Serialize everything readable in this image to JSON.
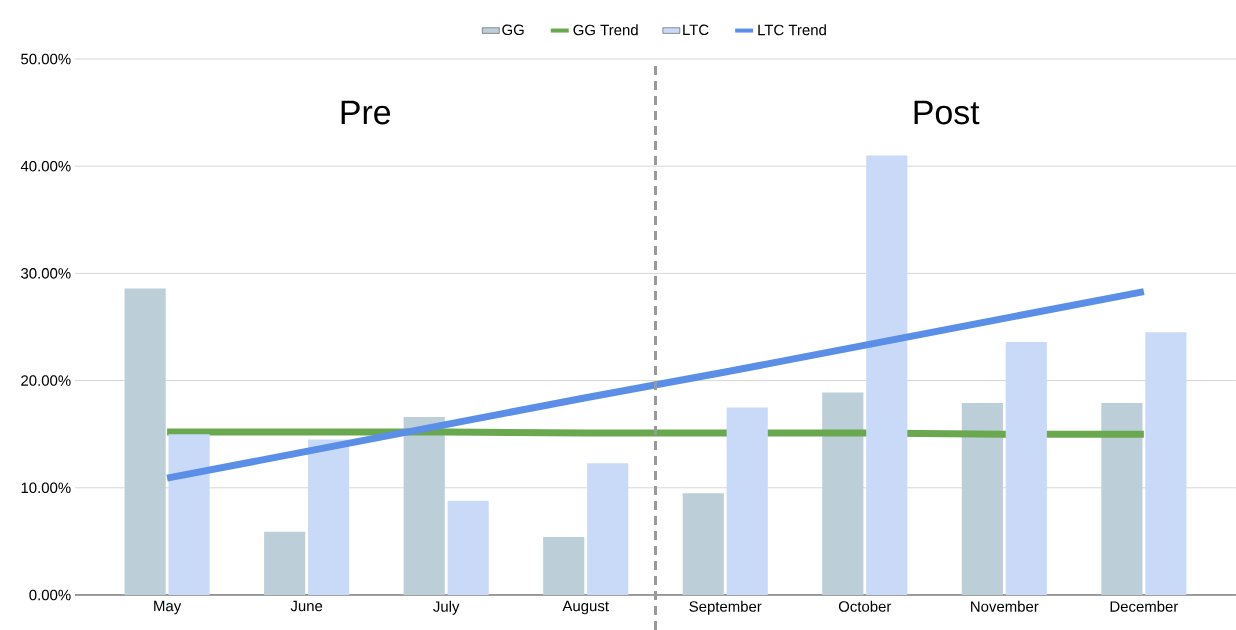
{
  "chart_data": {
    "type": "bar",
    "categories": [
      "May",
      "June",
      "July",
      "August",
      "September",
      "October",
      "November",
      "December"
    ],
    "series": [
      {
        "name": "GG",
        "color": "#bccfd8",
        "values": [
          28.6,
          5.9,
          16.6,
          5.4,
          9.5,
          18.9,
          17.9,
          17.9
        ]
      },
      {
        "name": "GG Trend",
        "type": "line",
        "color": "#6aa84f",
        "values": [
          15.2,
          15.2,
          15.2,
          15.1,
          15.1,
          15.1,
          15.0,
          15.0
        ]
      },
      {
        "name": "LTC",
        "color": "#c9daf8",
        "values": [
          15.0,
          14.5,
          8.8,
          12.3,
          17.5,
          41.0,
          23.6,
          24.5
        ]
      },
      {
        "name": "LTC Trend",
        "type": "line",
        "color": "#5b8ee6",
        "values": [
          10.9,
          13.4,
          15.9,
          18.4,
          20.8,
          23.3,
          25.8,
          28.3
        ]
      }
    ],
    "ylim": [
      0,
      50
    ],
    "yticks": [
      {
        "value": 0,
        "label": "0.00%"
      },
      {
        "value": 10,
        "label": "10.00%"
      },
      {
        "value": 20,
        "label": "20.00%"
      },
      {
        "value": 30,
        "label": "30.00%"
      },
      {
        "value": 40,
        "label": "40.00%"
      },
      {
        "value": 50,
        "label": "50.00%"
      }
    ],
    "grid": "y",
    "legend": "top",
    "marker": "none",
    "line_style": "solid",
    "annotations": [
      "Pre",
      "Post"
    ]
  }
}
